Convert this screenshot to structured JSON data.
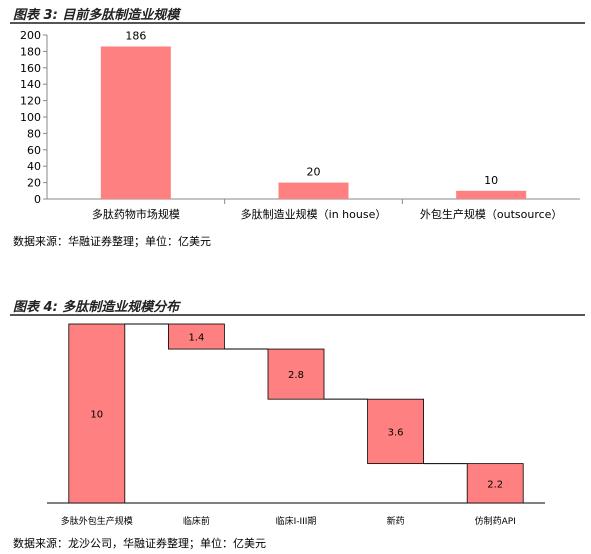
{
  "figures": [
    {
      "title": "图表 3:  目前多肽制造业规模",
      "source": "数据来源：华融证券整理；单位：亿美元"
    },
    {
      "title": "图表 4:  多肽制造业规模分布",
      "source": "数据来源：龙沙公司，华融证券整理；单位：亿美元"
    }
  ],
  "colors": {
    "bar": "#ff8080",
    "bar_edge": "#000000",
    "axis": "#888888"
  },
  "chart_data": [
    {
      "type": "bar",
      "title": "目前多肽制造业规模",
      "categories": [
        "多肽药物市场规模",
        "多肽制造业规模（in house）",
        "外包生产规模（outsource）"
      ],
      "values": [
        186,
        20,
        10
      ],
      "data_labels": [
        "186",
        "20",
        "10"
      ],
      "ylim": [
        0,
        200
      ],
      "yticks": [
        0,
        20,
        40,
        60,
        80,
        100,
        120,
        140,
        160,
        180,
        200
      ],
      "ytick_labels": [
        "0",
        "20",
        "40",
        "60",
        "80",
        "100",
        "120",
        "140",
        "160",
        "180",
        "200"
      ],
      "xlabel": "",
      "ylabel": "",
      "grid": false,
      "legend": "none"
    },
    {
      "type": "bar",
      "subtype": "waterfall",
      "title": "多肽制造业规模分布",
      "categories": [
        "多肽外包生产规模",
        "临床前",
        "临床I-III期",
        "新药",
        "仿制药API"
      ],
      "values": [
        10,
        1.4,
        2.8,
        3.6,
        2.2
      ],
      "data_labels": [
        "10",
        "1.4",
        "2.8",
        "3.6",
        "2.2"
      ],
      "ylim": [
        0,
        10
      ],
      "xlabel": "",
      "ylabel": "",
      "grid": false,
      "legend": "none"
    }
  ]
}
